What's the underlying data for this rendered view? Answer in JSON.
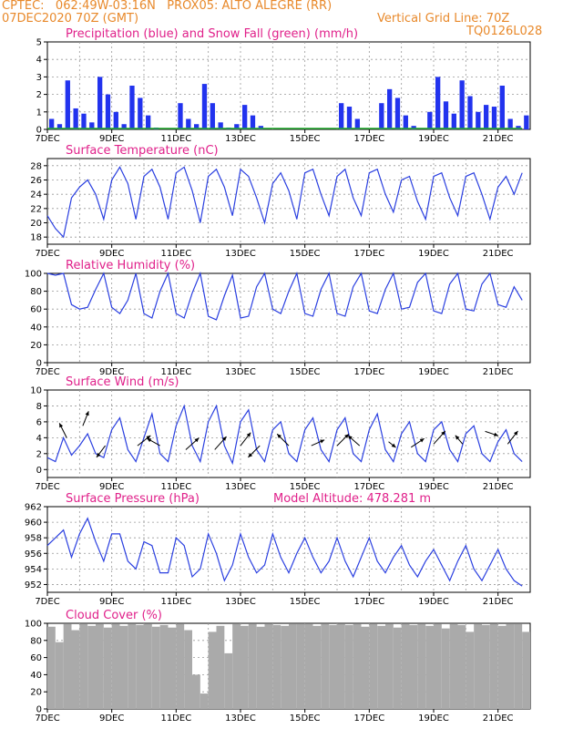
{
  "header": {
    "line1_left": "CPTEC:   062:49W-03:16N   PROX05: ALTO ALEGRE (RR)",
    "line2_left": "07DEC2020 70Z (GMT)",
    "line2_right": "Vertical Grid Line: 70Z",
    "line3_right": "TQ0126L028"
  },
  "x_ticks": [
    "7DEC",
    "9DEC",
    "11DEC",
    "13DEC",
    "15DEC",
    "17DEC",
    "19DEC",
    "21DEC"
  ],
  "colors": {
    "title": "#e0208a",
    "header": "#e8892b",
    "line": "#2a3fe0",
    "bar": "#2233ee",
    "snow": "#1faa2a",
    "cloud": "#aaaaaa"
  },
  "chart_data": [
    {
      "type": "bar",
      "title": "Precipitation (blue) and Snow Fall (green) (mm/h)",
      "ylim": [
        0,
        5
      ],
      "yticks": [
        "0",
        "1",
        "2",
        "3",
        "4",
        "5"
      ],
      "x": [
        0.0,
        0.25,
        0.5,
        0.75,
        1.0,
        1.25,
        1.5,
        1.75,
        2.0,
        2.25,
        2.5,
        2.75,
        3.0,
        3.25,
        3.5,
        3.75,
        4.0,
        4.25,
        4.5,
        4.75,
        5.0,
        5.25,
        5.5,
        5.75,
        6.0,
        6.25,
        6.5,
        6.75,
        7.0,
        7.25,
        7.5,
        7.75,
        8.0,
        8.25,
        8.5,
        8.75,
        9.0,
        9.25,
        9.5,
        9.75,
        10.0,
        10.25,
        10.5,
        10.75,
        11.0,
        11.25,
        11.5,
        11.75,
        12.0,
        12.25,
        12.5,
        12.75,
        13.0,
        13.25,
        13.5,
        13.75,
        14.0,
        14.25,
        14.5,
        14.75
      ],
      "series": [
        {
          "name": "blue",
          "values": [
            0.6,
            0.3,
            2.8,
            1.2,
            0.9,
            0.4,
            3.0,
            2.0,
            1.0,
            0.3,
            2.5,
            1.8,
            0.8,
            0.1,
            0.0,
            0.0,
            1.5,
            0.6,
            0.3,
            2.6,
            1.5,
            0.4,
            0.1,
            0.3,
            1.4,
            0.8,
            0.2,
            0.0,
            0.0,
            0.0,
            0.0,
            0.0,
            0.0,
            0.0,
            0.0,
            0.0,
            1.5,
            1.3,
            0.6,
            0.0,
            0.0,
            1.5,
            2.3,
            1.8,
            0.8,
            0.2,
            0.0,
            1.0,
            3.0,
            1.6,
            0.9,
            2.8,
            1.9,
            1.0,
            1.4,
            1.3,
            2.5,
            0.6,
            0.2,
            0.8
          ]
        },
        {
          "name": "green",
          "values": [
            0.05,
            0.05,
            0.05,
            0.05,
            0.05,
            0.05,
            0.05,
            0.05,
            0.05,
            0.05,
            0.05,
            0.05,
            0.05,
            0.05,
            0.05,
            0.05,
            0.05,
            0.05,
            0.05,
            0.05,
            0.05,
            0.05,
            0.05,
            0.05,
            0.05,
            0.05,
            0.05,
            0.05,
            0.05,
            0.05,
            0.05,
            0.05,
            0.05,
            0.05,
            0.05,
            0.05,
            0.05,
            0.05,
            0.05,
            0.05,
            0.05,
            0.05,
            0.05,
            0.05,
            0.05,
            0.05,
            0.05,
            0.05,
            0.05,
            0.05,
            0.05,
            0.05,
            0.05,
            0.05,
            0.05,
            0.05,
            0.05,
            0.05,
            0.05,
            0.05
          ]
        }
      ]
    },
    {
      "type": "line",
      "title": "Surface Temperature (nC)",
      "ylim": [
        17,
        29
      ],
      "yticks": [
        "18",
        "20",
        "22",
        "24",
        "26",
        "28"
      ],
      "x": [
        0.0,
        0.25,
        0.5,
        0.75,
        1.0,
        1.25,
        1.5,
        1.75,
        2.0,
        2.25,
        2.5,
        2.75,
        3.0,
        3.25,
        3.5,
        3.75,
        4.0,
        4.25,
        4.5,
        4.75,
        5.0,
        5.25,
        5.5,
        5.75,
        6.0,
        6.25,
        6.5,
        6.75,
        7.0,
        7.25,
        7.5,
        7.75,
        8.0,
        8.25,
        8.5,
        8.75,
        9.0,
        9.25,
        9.5,
        9.75,
        10.0,
        10.25,
        10.5,
        10.75,
        11.0,
        11.25,
        11.5,
        11.75,
        12.0,
        12.25,
        12.5,
        12.75,
        13.0,
        13.25,
        13.5,
        13.75,
        14.0,
        14.25,
        14.5,
        14.75
      ],
      "series": [
        {
          "values": [
            21.0,
            19.2,
            18.0,
            23.5,
            25.0,
            26.0,
            24.0,
            20.5,
            26.0,
            27.8,
            25.5,
            20.5,
            26.5,
            27.5,
            25.0,
            20.5,
            27.0,
            27.8,
            24.5,
            20.0,
            26.5,
            27.5,
            25.0,
            21.0,
            27.5,
            26.5,
            23.5,
            20.0,
            25.5,
            27.0,
            24.5,
            20.5,
            27.0,
            27.5,
            24.0,
            21.0,
            26.5,
            27.5,
            23.5,
            21.0,
            27.0,
            27.5,
            24.0,
            21.5,
            26.0,
            26.5,
            23.0,
            20.5,
            26.5,
            27.0,
            23.5,
            21.0,
            26.5,
            27.0,
            24.0,
            20.5,
            25.0,
            26.5,
            24.0,
            27.0
          ]
        }
      ]
    },
    {
      "type": "line",
      "title": "Relative Humidity (%)",
      "ylim": [
        0,
        100
      ],
      "yticks": [
        "0",
        "20",
        "40",
        "60",
        "80",
        "100"
      ],
      "x": [
        0.0,
        0.25,
        0.5,
        0.75,
        1.0,
        1.25,
        1.5,
        1.75,
        2.0,
        2.25,
        2.5,
        2.75,
        3.0,
        3.25,
        3.5,
        3.75,
        4.0,
        4.25,
        4.5,
        4.75,
        5.0,
        5.25,
        5.5,
        5.75,
        6.0,
        6.25,
        6.5,
        6.75,
        7.0,
        7.25,
        7.5,
        7.75,
        8.0,
        8.25,
        8.5,
        8.75,
        9.0,
        9.25,
        9.5,
        9.75,
        10.0,
        10.25,
        10.5,
        10.75,
        11.0,
        11.25,
        11.5,
        11.75,
        12.0,
        12.25,
        12.5,
        12.75,
        13.0,
        13.25,
        13.5,
        13.75,
        14.0,
        14.25,
        14.5,
        14.75
      ],
      "series": [
        {
          "values": [
            100,
            98,
            100,
            65,
            60,
            62,
            82,
            100,
            62,
            55,
            70,
            100,
            55,
            50,
            80,
            100,
            55,
            50,
            78,
            100,
            52,
            48,
            75,
            98,
            50,
            52,
            85,
            100,
            60,
            55,
            80,
            100,
            55,
            52,
            82,
            100,
            55,
            52,
            85,
            100,
            58,
            55,
            82,
            100,
            60,
            62,
            90,
            100,
            58,
            55,
            88,
            100,
            60,
            58,
            88,
            100,
            65,
            62,
            85,
            70
          ]
        }
      ]
    },
    {
      "type": "line",
      "title": "Surface Wind (m/s)",
      "ylim": [
        -1,
        10
      ],
      "yticks": [
        "0",
        "2",
        "4",
        "6",
        "8",
        "10"
      ],
      "x": [
        0.0,
        0.25,
        0.5,
        0.75,
        1.0,
        1.25,
        1.5,
        1.75,
        2.0,
        2.25,
        2.5,
        2.75,
        3.0,
        3.25,
        3.5,
        3.75,
        4.0,
        4.25,
        4.5,
        4.75,
        5.0,
        5.25,
        5.5,
        5.75,
        6.0,
        6.25,
        6.5,
        6.75,
        7.0,
        7.25,
        7.5,
        7.75,
        8.0,
        8.25,
        8.5,
        8.75,
        9.0,
        9.25,
        9.5,
        9.75,
        10.0,
        10.25,
        10.5,
        10.75,
        11.0,
        11.25,
        11.5,
        11.75,
        12.0,
        12.25,
        12.5,
        12.75,
        13.0,
        13.25,
        13.5,
        13.75,
        14.0,
        14.25,
        14.5,
        14.75
      ],
      "series": [
        {
          "values": [
            1.5,
            1.0,
            4.0,
            1.8,
            3.0,
            4.5,
            2.0,
            1.5,
            5.0,
            6.5,
            2.5,
            1.0,
            4.0,
            7.0,
            2.0,
            1.0,
            5.5,
            8.0,
            3.0,
            1.0,
            6.0,
            8.0,
            3.0,
            0.8,
            6.0,
            7.5,
            2.5,
            1.0,
            5.0,
            6.0,
            2.0,
            1.0,
            5.0,
            6.5,
            2.5,
            1.0,
            5.0,
            6.5,
            2.0,
            1.0,
            5.0,
            7.0,
            2.5,
            1.0,
            4.5,
            6.0,
            2.0,
            1.0,
            5.0,
            6.0,
            2.5,
            1.0,
            4.5,
            5.5,
            2.0,
            1.0,
            3.5,
            5.0,
            2.0,
            1.0
          ]
        }
      ],
      "arrows": [
        {
          "x": 0.6,
          "y": 4.0,
          "u": -0.5,
          "v": 1.0
        },
        {
          "x": 1.1,
          "y": 5.5,
          "u": 0.4,
          "v": 1.0
        },
        {
          "x": 1.8,
          "y": 3.0,
          "u": -0.6,
          "v": -0.8
        },
        {
          "x": 2.8,
          "y": 3.0,
          "u": 0.9,
          "v": 0.7
        },
        {
          "x": 3.5,
          "y": 3.0,
          "u": -0.9,
          "v": 0.5
        },
        {
          "x": 4.3,
          "y": 2.5,
          "u": 0.9,
          "v": 0.8
        },
        {
          "x": 5.2,
          "y": 2.5,
          "u": 0.8,
          "v": 0.9
        },
        {
          "x": 6.0,
          "y": 3.0,
          "u": 0.7,
          "v": 0.9
        },
        {
          "x": 6.6,
          "y": 3.0,
          "u": -0.8,
          "v": -0.8
        },
        {
          "x": 7.5,
          "y": 3.0,
          "u": -0.8,
          "v": 0.8
        },
        {
          "x": 8.2,
          "y": 3.0,
          "u": 0.9,
          "v": 0.4
        },
        {
          "x": 9.0,
          "y": 3.0,
          "u": 0.8,
          "v": 0.8
        },
        {
          "x": 9.7,
          "y": 3.0,
          "u": -0.8,
          "v": 0.7
        },
        {
          "x": 10.6,
          "y": 3.5,
          "u": 0.5,
          "v": -0.4
        },
        {
          "x": 11.3,
          "y": 2.8,
          "u": 0.9,
          "v": 0.6
        },
        {
          "x": 12.0,
          "y": 3.2,
          "u": 0.8,
          "v": 0.9
        },
        {
          "x": 12.9,
          "y": 3.2,
          "u": -0.5,
          "v": 0.6
        },
        {
          "x": 13.6,
          "y": 4.8,
          "u": 0.9,
          "v": -0.3
        },
        {
          "x": 14.3,
          "y": 3.2,
          "u": 0.7,
          "v": 0.9
        }
      ]
    },
    {
      "type": "line",
      "title": "Surface Pressure (hPa)",
      "annotation": "Model Altitude: 478.281  m",
      "ylim": [
        951,
        962
      ],
      "yticks": [
        "952",
        "954",
        "956",
        "958",
        "960",
        "962"
      ],
      "x": [
        0.0,
        0.25,
        0.5,
        0.75,
        1.0,
        1.25,
        1.5,
        1.75,
        2.0,
        2.25,
        2.5,
        2.75,
        3.0,
        3.25,
        3.5,
        3.75,
        4.0,
        4.25,
        4.5,
        4.75,
        5.0,
        5.25,
        5.5,
        5.75,
        6.0,
        6.25,
        6.5,
        6.75,
        7.0,
        7.25,
        7.5,
        7.75,
        8.0,
        8.25,
        8.5,
        8.75,
        9.0,
        9.25,
        9.5,
        9.75,
        10.0,
        10.25,
        10.5,
        10.75,
        11.0,
        11.25,
        11.5,
        11.75,
        12.0,
        12.25,
        12.5,
        12.75,
        13.0,
        13.25,
        13.5,
        13.75,
        14.0,
        14.25,
        14.5,
        14.75
      ],
      "series": [
        {
          "values": [
            957.0,
            958.0,
            959.0,
            955.5,
            958.5,
            960.5,
            957.5,
            955.0,
            958.5,
            958.5,
            955.0,
            954.0,
            957.5,
            957.0,
            953.5,
            953.5,
            958.0,
            957.0,
            953.0,
            954.0,
            958.5,
            956.0,
            952.5,
            954.5,
            958.5,
            955.5,
            953.5,
            954.5,
            958.5,
            955.5,
            953.5,
            956.0,
            958.0,
            955.5,
            953.5,
            955.0,
            958.0,
            955.0,
            953.0,
            955.5,
            958.0,
            955.0,
            953.5,
            955.5,
            957.0,
            954.5,
            953.0,
            955.0,
            956.5,
            954.5,
            952.5,
            955.0,
            957.0,
            954.0,
            952.5,
            954.5,
            956.5,
            954.0,
            952.5,
            951.8
          ]
        }
      ]
    },
    {
      "type": "bar",
      "title": "Cloud Cover (%)",
      "ylim": [
        0,
        100
      ],
      "yticks": [
        "0",
        "20",
        "40",
        "60",
        "80",
        "100"
      ],
      "x": [
        0.0,
        0.25,
        0.5,
        0.75,
        1.0,
        1.25,
        1.5,
        1.75,
        2.0,
        2.25,
        2.5,
        2.75,
        3.0,
        3.25,
        3.5,
        3.75,
        4.0,
        4.25,
        4.5,
        4.75,
        5.0,
        5.25,
        5.5,
        5.75,
        6.0,
        6.25,
        6.5,
        6.75,
        7.0,
        7.25,
        7.5,
        7.75,
        8.0,
        8.25,
        8.5,
        8.75,
        9.0,
        9.25,
        9.5,
        9.75,
        10.0,
        10.25,
        10.5,
        10.75,
        11.0,
        11.25,
        11.5,
        11.75,
        12.0,
        12.25,
        12.5,
        12.75,
        13.0,
        13.25,
        13.5,
        13.75,
        14.0,
        14.25,
        14.5,
        14.75
      ],
      "series": [
        {
          "values": [
            96,
            78,
            99,
            92,
            99,
            97,
            99,
            95,
            99,
            97,
            99,
            98,
            99,
            96,
            98,
            95,
            99,
            92,
            40,
            18,
            90,
            97,
            65,
            99,
            97,
            99,
            96,
            99,
            98,
            97,
            99,
            99,
            99,
            97,
            99,
            98,
            99,
            98,
            99,
            96,
            99,
            97,
            99,
            95,
            99,
            98,
            99,
            97,
            99,
            94,
            99,
            98,
            90,
            99,
            98,
            99,
            97,
            99,
            99,
            90
          ]
        }
      ]
    }
  ]
}
